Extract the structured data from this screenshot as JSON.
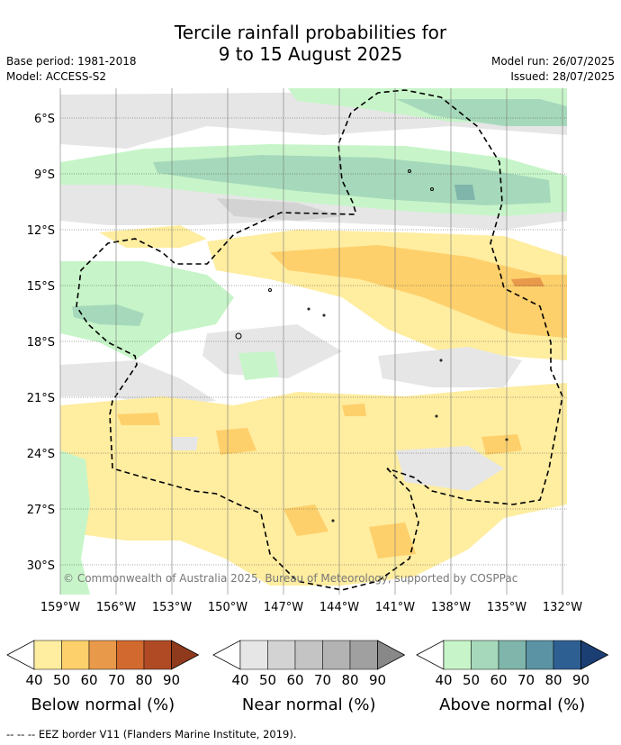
{
  "title_line1": "Tercile rainfall probabilities for",
  "title_line2": "9 to 15 August 2025",
  "base_period": "Base period: 1981-2018",
  "model": "Model: ACCESS-S2",
  "model_run": "Model run: 26/07/2025",
  "issued": "Issued: 28/07/2025",
  "copyright": "© Commonwealth of Australia 2025, Bureau of Meteorology, supported by COSPPac",
  "lat_ticks": [
    "6°S",
    "9°S",
    "12°S",
    "15°S",
    "18°S",
    "21°S",
    "24°S",
    "27°S",
    "30°S"
  ],
  "lon_ticks": [
    "159°W",
    "156°W",
    "153°W",
    "150°W",
    "147°W",
    "144°W",
    "141°W",
    "138°W",
    "135°W",
    "132°W"
  ],
  "colorbars": [
    {
      "label": "Below normal (%)",
      "ticks": [
        "40",
        "50",
        "60",
        "70",
        "80",
        "90"
      ],
      "colors": [
        "#ffeda0",
        "#fed06b",
        "#e8994a",
        "#d2692f",
        "#b04a25",
        "#8f3a1c"
      ]
    },
    {
      "label": "Near normal (%)",
      "ticks": [
        "40",
        "50",
        "60",
        "70",
        "80",
        "90"
      ],
      "colors": [
        "#e6e6e6",
        "#d3d3d3",
        "#c4c4c4",
        "#b3b3b3",
        "#a0a0a0",
        "#888888"
      ]
    },
    {
      "label": "Above normal (%)",
      "ticks": [
        "40",
        "50",
        "60",
        "70",
        "80",
        "90"
      ],
      "colors": [
        "#c7f5c9",
        "#a6d9bb",
        "#7fb5aa",
        "#5b93a4",
        "#2e5f93",
        "#1b3f73"
      ]
    }
  ],
  "footnote": "-- -- -- EEZ border V11 (Flanders Marine Institute, 2019)."
}
